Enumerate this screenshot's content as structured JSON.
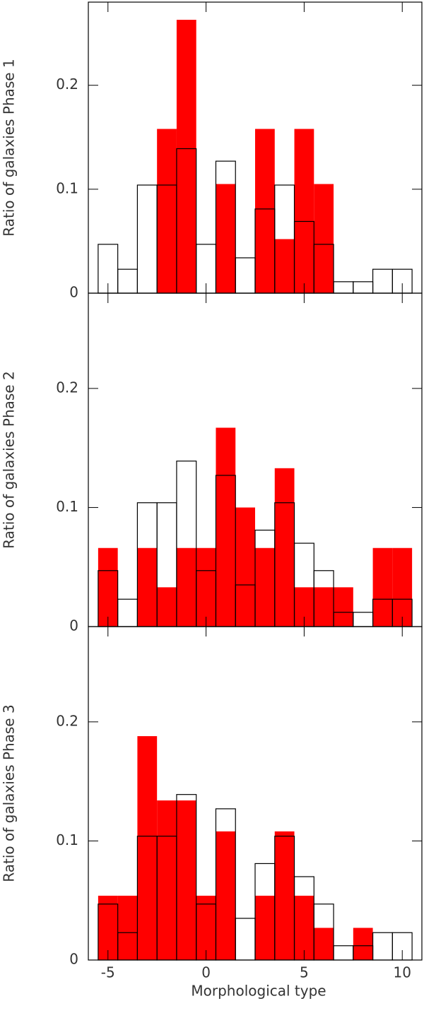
{
  "chart_data": [
    {
      "type": "histogram",
      "ylabel": "Ratio of galaxies Phase 1",
      "bins": [
        -5.5,
        -4.5,
        -3.5,
        -2.5,
        -1.5,
        -0.5,
        0.5,
        1.5,
        2.5,
        3.5,
        4.5,
        5.5,
        6.5,
        7.5,
        8.5,
        9.5,
        10.5
      ],
      "series": [
        {
          "color": "#ff0000",
          "filled": true,
          "values": [
            0,
            0,
            0,
            0.158,
            0.263,
            0,
            0.105,
            0,
            0.158,
            0.052,
            0.158,
            0.105,
            0,
            0,
            0,
            0
          ]
        },
        {
          "color": "#000000",
          "filled": false,
          "values": [
            0.047,
            0.023,
            0.104,
            0.104,
            0.139,
            0.047,
            0.127,
            0.034,
            0.081,
            0.104,
            0.069,
            0.047,
            0.011,
            0.011,
            0.023,
            0.023
          ]
        }
      ],
      "xlim": [
        -6,
        11
      ],
      "xticks": [
        -5,
        0,
        5,
        10
      ],
      "ylim": [
        0,
        0.28
      ],
      "yticks": [
        0,
        0.1,
        0.2
      ]
    },
    {
      "type": "histogram",
      "ylabel": "Ratio of galaxies Phase 2",
      "bins": [
        -5.5,
        -4.5,
        -3.5,
        -2.5,
        -1.5,
        -0.5,
        0.5,
        1.5,
        2.5,
        3.5,
        4.5,
        5.5,
        6.5,
        7.5,
        8.5,
        9.5,
        10.5
      ],
      "series": [
        {
          "color": "#ff0000",
          "filled": true,
          "values": [
            0.066,
            0,
            0.066,
            0.033,
            0.066,
            0.066,
            0.167,
            0.1,
            0.066,
            0.133,
            0.033,
            0.033,
            0.033,
            0,
            0.066,
            0.066
          ]
        },
        {
          "color": "#000000",
          "filled": false,
          "values": [
            0.047,
            0.023,
            0.104,
            0.104,
            0.139,
            0.047,
            0.127,
            0.035,
            0.081,
            0.104,
            0.07,
            0.047,
            0.012,
            0.012,
            0.023,
            0.023
          ]
        }
      ],
      "xlim": [
        -6,
        11
      ],
      "xticks": [
        -5,
        0,
        5,
        10
      ],
      "ylim": [
        0,
        0.28
      ],
      "yticks": [
        0,
        0.1,
        0.2
      ]
    },
    {
      "type": "histogram",
      "ylabel": "Ratio of galaxies Phase 3",
      "xlabel": "Morphological type",
      "bins": [
        -5.5,
        -4.5,
        -3.5,
        -2.5,
        -1.5,
        -0.5,
        0.5,
        1.5,
        2.5,
        3.5,
        4.5,
        5.5,
        6.5,
        7.5,
        8.5,
        9.5,
        10.5
      ],
      "series": [
        {
          "color": "#ff0000",
          "filled": true,
          "values": [
            0.054,
            0.054,
            0.188,
            0.134,
            0.134,
            0.054,
            0.108,
            0,
            0.054,
            0.108,
            0.054,
            0.027,
            0,
            0.027,
            0,
            0
          ]
        },
        {
          "color": "#000000",
          "filled": false,
          "values": [
            0.047,
            0.023,
            0.104,
            0.104,
            0.139,
            0.047,
            0.127,
            0.035,
            0.081,
            0.104,
            0.07,
            0.047,
            0.012,
            0.012,
            0.023,
            0.023
          ]
        }
      ],
      "xlim": [
        -6,
        11
      ],
      "xticks": [
        -5,
        0,
        5,
        10
      ],
      "ylim": [
        0,
        0.28
      ],
      "yticks": [
        0,
        0.1,
        0.2
      ]
    }
  ]
}
